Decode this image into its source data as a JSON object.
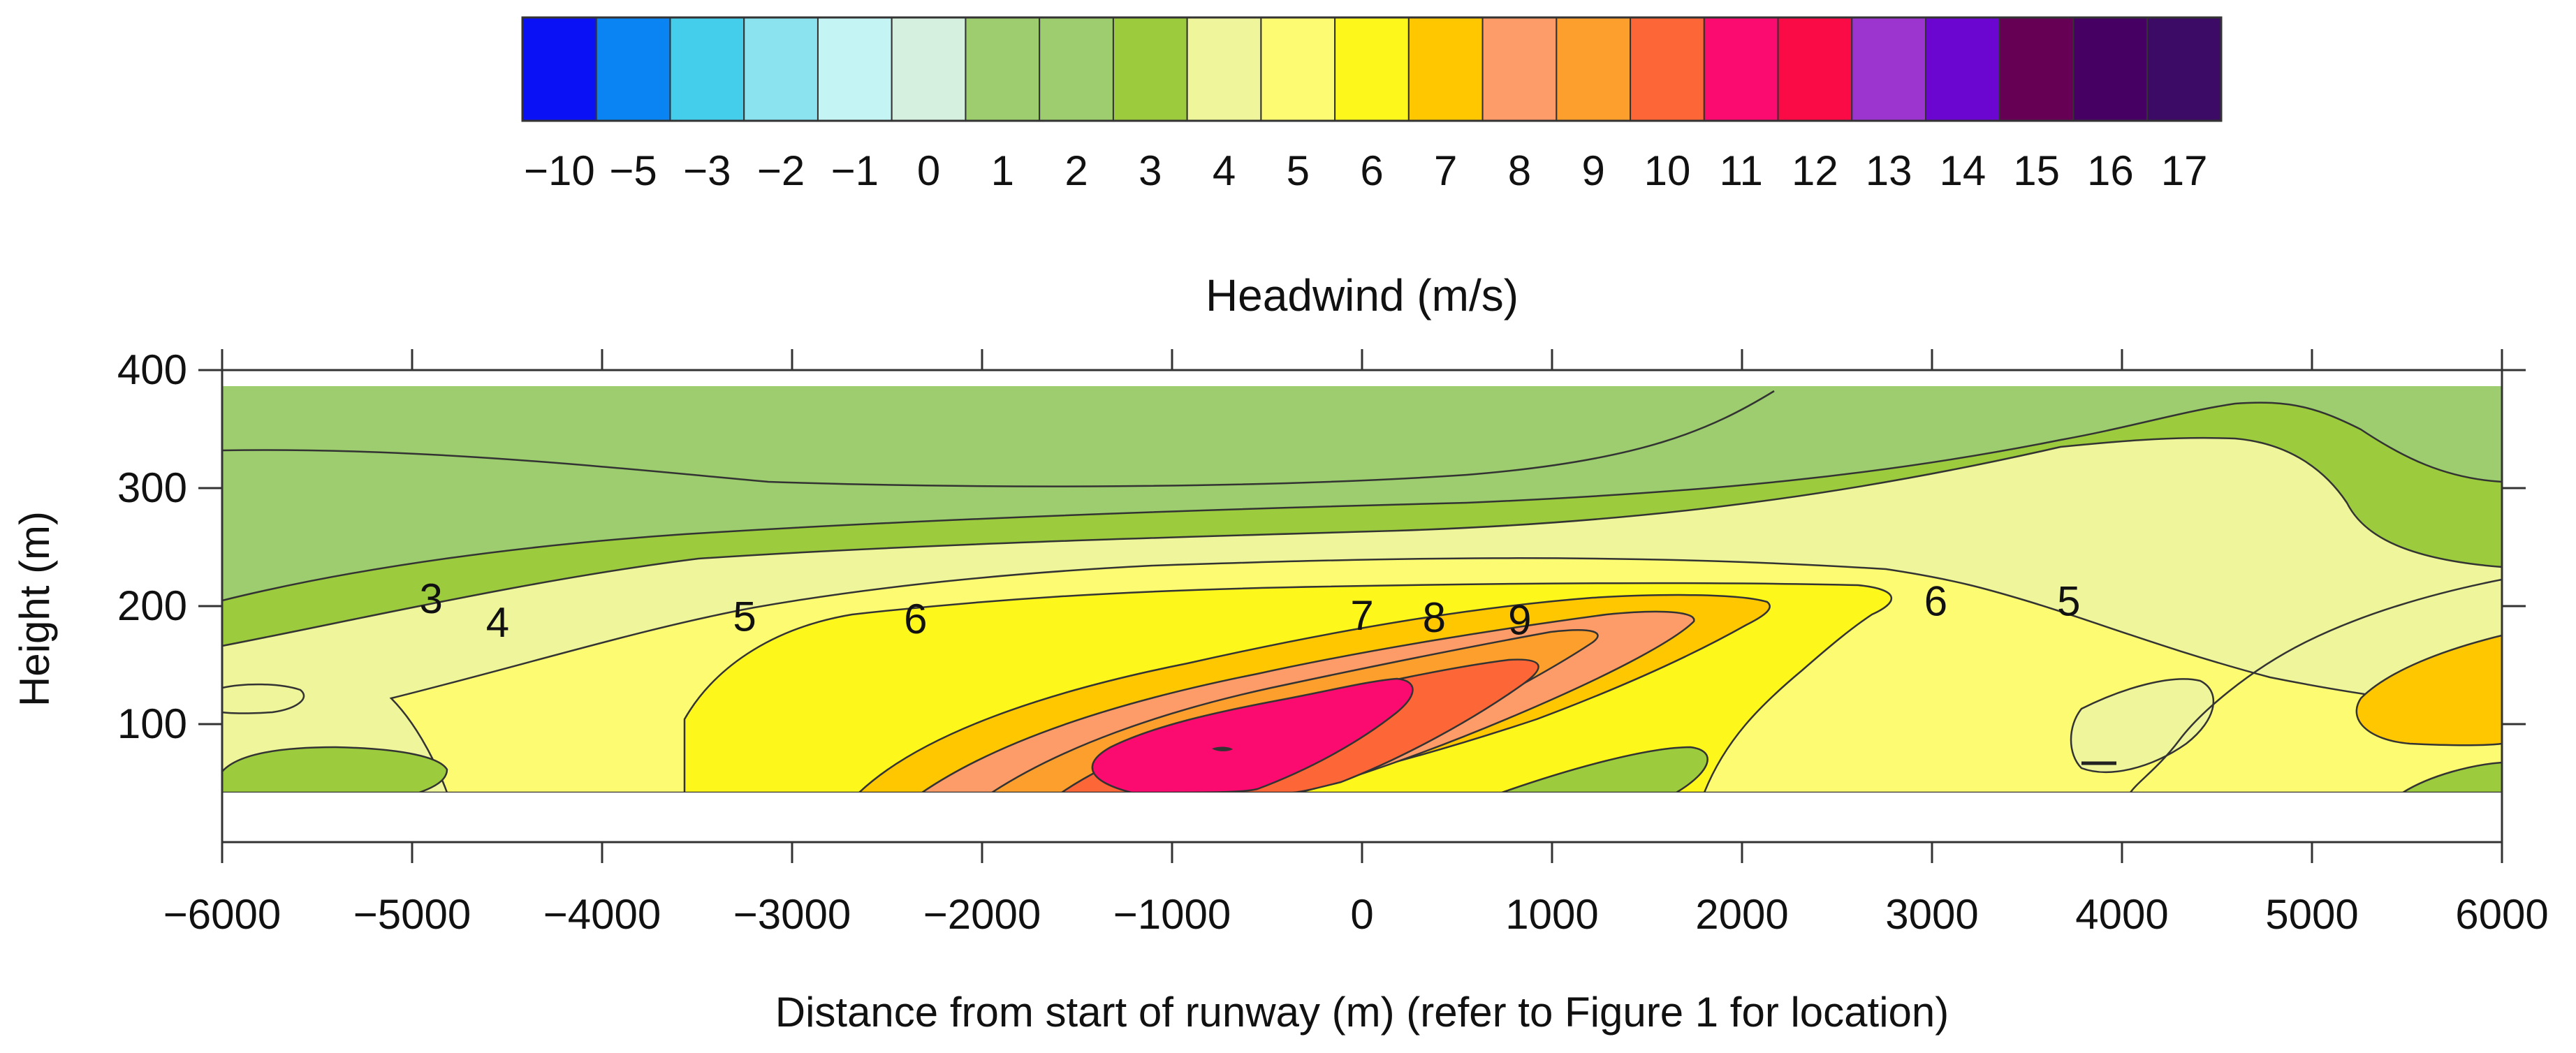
{
  "chart_data": {
    "type": "heatmap",
    "subtype": "filled-contour",
    "title": "Headwind (m/s)",
    "xlabel": "Distance from start of runway (m) (refer to Figure 1 for location)",
    "ylabel": "Height (m)",
    "xlim": [
      -6000,
      6000
    ],
    "ylim": [
      0,
      400
    ],
    "data_extent": {
      "x": [
        -6000,
        6000
      ],
      "y": [
        40,
        380
      ]
    },
    "x_ticks": [
      -6000,
      -5000,
      -4000,
      -3000,
      -2000,
      -1000,
      0,
      1000,
      2000,
      3000,
      4000,
      5000,
      6000
    ],
    "x_tick_labels": [
      "−6000",
      "−5000",
      "−4000",
      "−3000",
      "−2000",
      "−1000",
      "0",
      "1000",
      "2000",
      "3000",
      "4000",
      "5000",
      "6000"
    ],
    "y_ticks": [
      100,
      200,
      300,
      400
    ],
    "y_tick_labels": [
      "100",
      "200",
      "300",
      "400"
    ],
    "colorbar": {
      "levels": [
        -10,
        -5,
        -3,
        -2,
        -1,
        0,
        1,
        2,
        3,
        4,
        5,
        6,
        7,
        8,
        9,
        10,
        11,
        12,
        13,
        14,
        15,
        16,
        17
      ],
      "labels": [
        "−10",
        "−5",
        "−3",
        "−2",
        "−1",
        "0",
        "1",
        "2",
        "3",
        "4",
        "5",
        "6",
        "7",
        "8",
        "9",
        "10",
        "11",
        "12",
        "13",
        "14",
        "15",
        "16",
        "17"
      ],
      "colors": [
        "#0a12f5",
        "#0a84f2",
        "#45cdec",
        "#8ae3ee",
        "#c4f5f4",
        "#d6f0df",
        "#9dcd6e",
        "#9dcd6e",
        "#9ccc3e",
        "#eef59a",
        "#fdfb72",
        "#fdf71c",
        "#fec700",
        "#fd9c68",
        "#fd9f2c",
        "#fd6637",
        "#fb0b6f",
        "#fb0b45",
        "#9c35cf",
        "#6a06cf",
        "#650055",
        "#460063",
        "#3b0b65"
      ]
    },
    "contour_labels": [
      {
        "text": "3",
        "x": -4900,
        "y": 207
      },
      {
        "text": "4",
        "x": -4550,
        "y": 187
      },
      {
        "text": "5",
        "x": -3250,
        "y": 192
      },
      {
        "text": "6",
        "x": -2350,
        "y": 190
      },
      {
        "text": "7",
        "x": 0,
        "y": 193
      },
      {
        "text": "8",
        "x": 380,
        "y": 191
      },
      {
        "text": "9",
        "x": 830,
        "y": 189
      },
      {
        "text": "6",
        "x": 3020,
        "y": 205
      },
      {
        "text": "5",
        "x": 3720,
        "y": 205
      }
    ],
    "features": {
      "max_core_level": 11,
      "max_core_center": [
        -700,
        75
      ]
    }
  }
}
